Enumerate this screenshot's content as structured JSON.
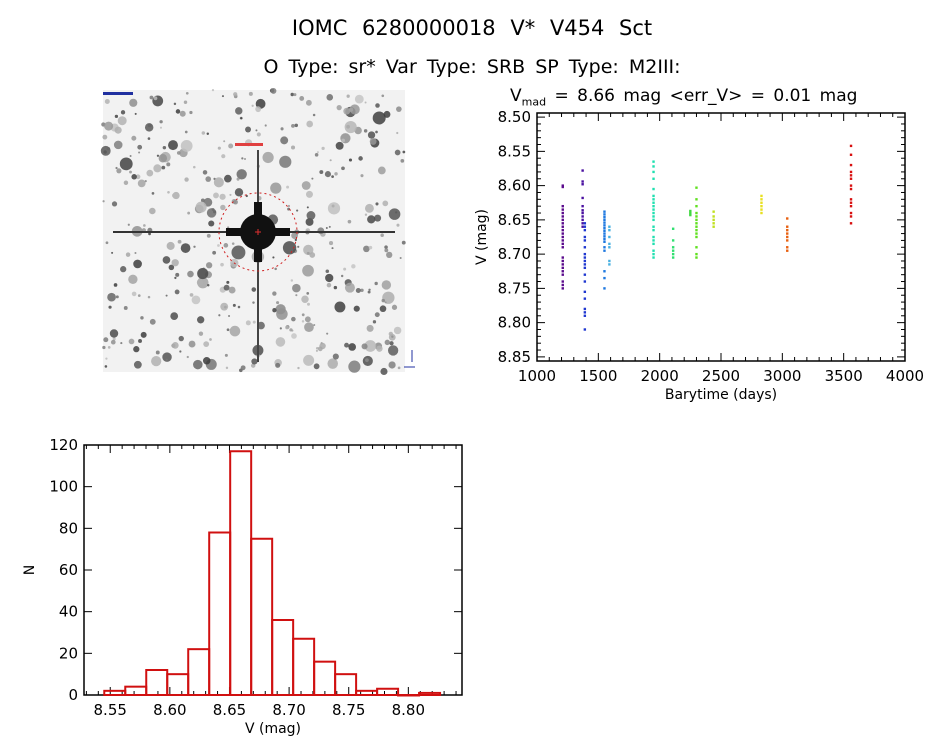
{
  "header": {
    "title": "IOMC 6280000018    V* V454 Sct",
    "subtitle": "O Type: sr*   Var Type: SRB   SP Type: M2III:",
    "vmed_prefix": "V",
    "vmed_sub": "mad",
    "vmed_rest": " = 8.66 mag <err_V> = 0.01 mag"
  },
  "image_panel": {
    "kind": "sky-image",
    "target_marker": "red-circle"
  },
  "chart_data": [
    {
      "type": "scatter",
      "title": "V_mad = 8.66 mag <err_V> = 0.01 mag",
      "xlabel": "Barytime (days)",
      "ylabel": "V (mag)",
      "xlim": [
        1000,
        4000
      ],
      "ylim": [
        8.494,
        8.856
      ],
      "y_inverted": true,
      "xticks": [
        "1000",
        "1500",
        "2000",
        "2500",
        "3000",
        "3500",
        "4000"
      ],
      "yticks": [
        "8.50",
        "8.55",
        "8.60",
        "8.65",
        "8.70",
        "8.75",
        "8.80",
        "8.85"
      ],
      "grid": false,
      "series": [
        {
          "x": 1210,
          "color": "#5a0a8c",
          "y": [
            8.6,
            8.602,
            8.63,
            8.635,
            8.64,
            8.645,
            8.65,
            8.655,
            8.66,
            8.665,
            8.67,
            8.675,
            8.68,
            8.685,
            8.69,
            8.705,
            8.71,
            8.715,
            8.72,
            8.725,
            8.73,
            8.74,
            8.745,
            8.75
          ]
        },
        {
          "x": 1372,
          "color": "#4a10a0",
          "y": [
            8.578,
            8.594,
            8.598,
            8.618,
            8.63,
            8.636,
            8.64,
            8.645,
            8.65,
            8.655,
            8.66
          ]
        },
        {
          "x": 1390,
          "color": "#2038d0",
          "y": [
            8.655,
            8.66,
            8.665,
            8.675,
            8.68,
            8.69,
            8.7,
            8.705,
            8.71,
            8.715,
            8.72,
            8.73,
            8.74,
            8.755,
            8.765,
            8.78,
            8.785,
            8.79,
            8.81
          ]
        },
        {
          "x": 1550,
          "color": "#1e78e0",
          "y": [
            8.638,
            8.642,
            8.646,
            8.65,
            8.654,
            8.658,
            8.662,
            8.666,
            8.67,
            8.674,
            8.678,
            8.682,
            8.69,
            8.695,
            8.725,
            8.735,
            8.75
          ]
        },
        {
          "x": 1590,
          "color": "#48b0e0",
          "y": [
            8.66,
            8.665,
            8.675,
            8.685,
            8.69,
            8.71,
            8.715
          ]
        },
        {
          "x": 1950,
          "color": "#20e0b0",
          "y": [
            8.565,
            8.572,
            8.58,
            8.59,
            8.605,
            8.615,
            8.62,
            8.625,
            8.63,
            8.635,
            8.64,
            8.645,
            8.65,
            8.66,
            8.665,
            8.675,
            8.68,
            8.685,
            8.695,
            8.7,
            8.705
          ]
        },
        {
          "x": 2110,
          "color": "#30e070",
          "y": [
            8.663,
            8.68,
            8.69,
            8.695,
            8.7,
            8.705
          ]
        },
        {
          "x": 2250,
          "color": "#40d840",
          "y": [
            8.637,
            8.64,
            8.643
          ]
        },
        {
          "x": 2300,
          "color": "#60e020",
          "y": [
            8.603,
            8.62,
            8.63,
            8.64,
            8.645,
            8.65,
            8.655,
            8.66,
            8.665,
            8.67,
            8.675,
            8.69,
            8.7,
            8.705
          ]
        },
        {
          "x": 2440,
          "color": "#c0e020",
          "y": [
            8.638,
            8.645,
            8.65,
            8.655,
            8.66
          ]
        },
        {
          "x": 2830,
          "color": "#e8e020",
          "y": [
            8.615,
            8.62,
            8.625,
            8.63,
            8.635,
            8.64
          ]
        },
        {
          "x": 3040,
          "color": "#e86010",
          "y": [
            8.648,
            8.66,
            8.665,
            8.67,
            8.675,
            8.68,
            8.69,
            8.695
          ]
        },
        {
          "x": 3560,
          "color": "#d81010",
          "y": [
            8.542,
            8.555,
            8.57,
            8.58,
            8.585,
            8.59,
            8.6,
            8.605,
            8.62,
            8.625,
            8.63,
            8.64,
            8.645,
            8.655
          ]
        }
      ]
    },
    {
      "type": "bar",
      "subtype": "histogram",
      "xlabel": "V (mag)",
      "ylabel": "N",
      "xlim": [
        8.528,
        8.845
      ],
      "ylim": [
        0,
        120
      ],
      "xticks": [
        "8.55",
        "8.60",
        "8.65",
        "8.70",
        "8.75",
        "8.80"
      ],
      "yticks": [
        "0",
        "20",
        "40",
        "60",
        "80",
        "100",
        "120"
      ],
      "bin_start": 8.545,
      "bin_width": 0.0176,
      "values": [
        2,
        4,
        12,
        10,
        22,
        78,
        117,
        75,
        36,
        27,
        16,
        10,
        2,
        3,
        0,
        1
      ],
      "color": "#d01010",
      "grid": false
    }
  ]
}
